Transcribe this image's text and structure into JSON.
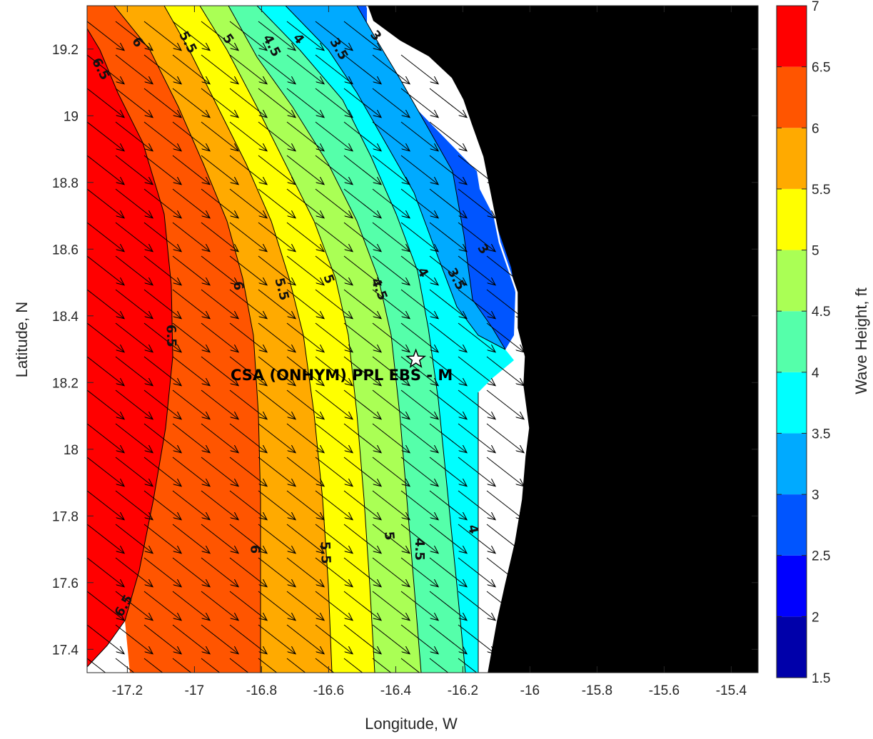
{
  "map": {
    "xlabel": "Longitude, W",
    "ylabel": "Latitude, N",
    "xlim": [
      -17.32,
      -15.32
    ],
    "ylim": [
      17.33,
      19.33
    ],
    "xticks": [
      "-17.2",
      "-17",
      "-16.8",
      "-16.6",
      "-16.4",
      "-16.2",
      "-16",
      "-15.8",
      "-15.6",
      "-15.4"
    ],
    "yticks": [
      "17.4",
      "17.6",
      "17.8",
      "18",
      "18.2",
      "18.4",
      "18.6",
      "18.8",
      "19",
      "19.2"
    ],
    "site": {
      "label": "CSA (ONHYM) PPL EBS  - M",
      "lon": -16.34,
      "lat": 18.27,
      "marker": "star-icon"
    },
    "land_color": "#000000",
    "uncovered_sea_color": "#ffffff"
  },
  "colorbar": {
    "label": "Wave Height, ft",
    "ticks": [
      "1.5",
      "2",
      "2.5",
      "3",
      "3.5",
      "4",
      "4.5",
      "5",
      "5.5",
      "6",
      "6.5",
      "7"
    ],
    "levels": [
      1.5,
      2,
      2.5,
      3,
      3.5,
      4,
      4.5,
      5,
      5.5,
      6,
      6.5,
      7
    ],
    "colors": [
      "#0000aa",
      "#0000ff",
      "#0055ff",
      "#00aaff",
      "#00ffff",
      "#55ffaa",
      "#aaff55",
      "#ffff00",
      "#ffaa00",
      "#ff5500",
      "#ff0000"
    ]
  },
  "contour_labels": [
    {
      "text": "6.5",
      "lon": -17.28,
      "lat": 19.14,
      "angle": 62
    },
    {
      "text": "6",
      "lon": -17.17,
      "lat": 19.22,
      "angle": 55
    },
    {
      "text": "5.5",
      "lon": -17.02,
      "lat": 19.22,
      "angle": 62
    },
    {
      "text": "5",
      "lon": -16.9,
      "lat": 19.23,
      "angle": 55
    },
    {
      "text": "4.5",
      "lon": -16.77,
      "lat": 19.21,
      "angle": 62
    },
    {
      "text": "4",
      "lon": -16.69,
      "lat": 19.23,
      "angle": 50
    },
    {
      "text": "3.5",
      "lon": -16.57,
      "lat": 19.2,
      "angle": 60
    },
    {
      "text": "3",
      "lon": -16.46,
      "lat": 19.24,
      "angle": 50
    },
    {
      "text": "6",
      "lon": -16.87,
      "lat": 18.49,
      "angle": 80
    },
    {
      "text": "6.5",
      "lon": -17.07,
      "lat": 18.34,
      "angle": 88
    },
    {
      "text": "5.5",
      "lon": -16.74,
      "lat": 18.48,
      "angle": 75
    },
    {
      "text": "5",
      "lon": -16.6,
      "lat": 18.51,
      "angle": 70
    },
    {
      "text": "4.5",
      "lon": -16.45,
      "lat": 18.48,
      "angle": 68
    },
    {
      "text": "4",
      "lon": -16.32,
      "lat": 18.53,
      "angle": 60
    },
    {
      "text": "3.5",
      "lon": -16.22,
      "lat": 18.51,
      "angle": 62
    },
    {
      "text": "3",
      "lon": -16.14,
      "lat": 18.6,
      "angle": 55
    },
    {
      "text": "6",
      "lon": -16.82,
      "lat": 17.7,
      "angle": 90
    },
    {
      "text": "5.5",
      "lon": -16.61,
      "lat": 17.69,
      "angle": 88
    },
    {
      "text": "5",
      "lon": -16.42,
      "lat": 17.74,
      "angle": 85
    },
    {
      "text": "4.5",
      "lon": -16.33,
      "lat": 17.7,
      "angle": 90
    },
    {
      "text": "4",
      "lon": -16.17,
      "lat": 17.76,
      "angle": 78
    },
    {
      "text": "6.5",
      "lon": -17.21,
      "lat": 17.53,
      "angle": -60
    }
  ]
}
